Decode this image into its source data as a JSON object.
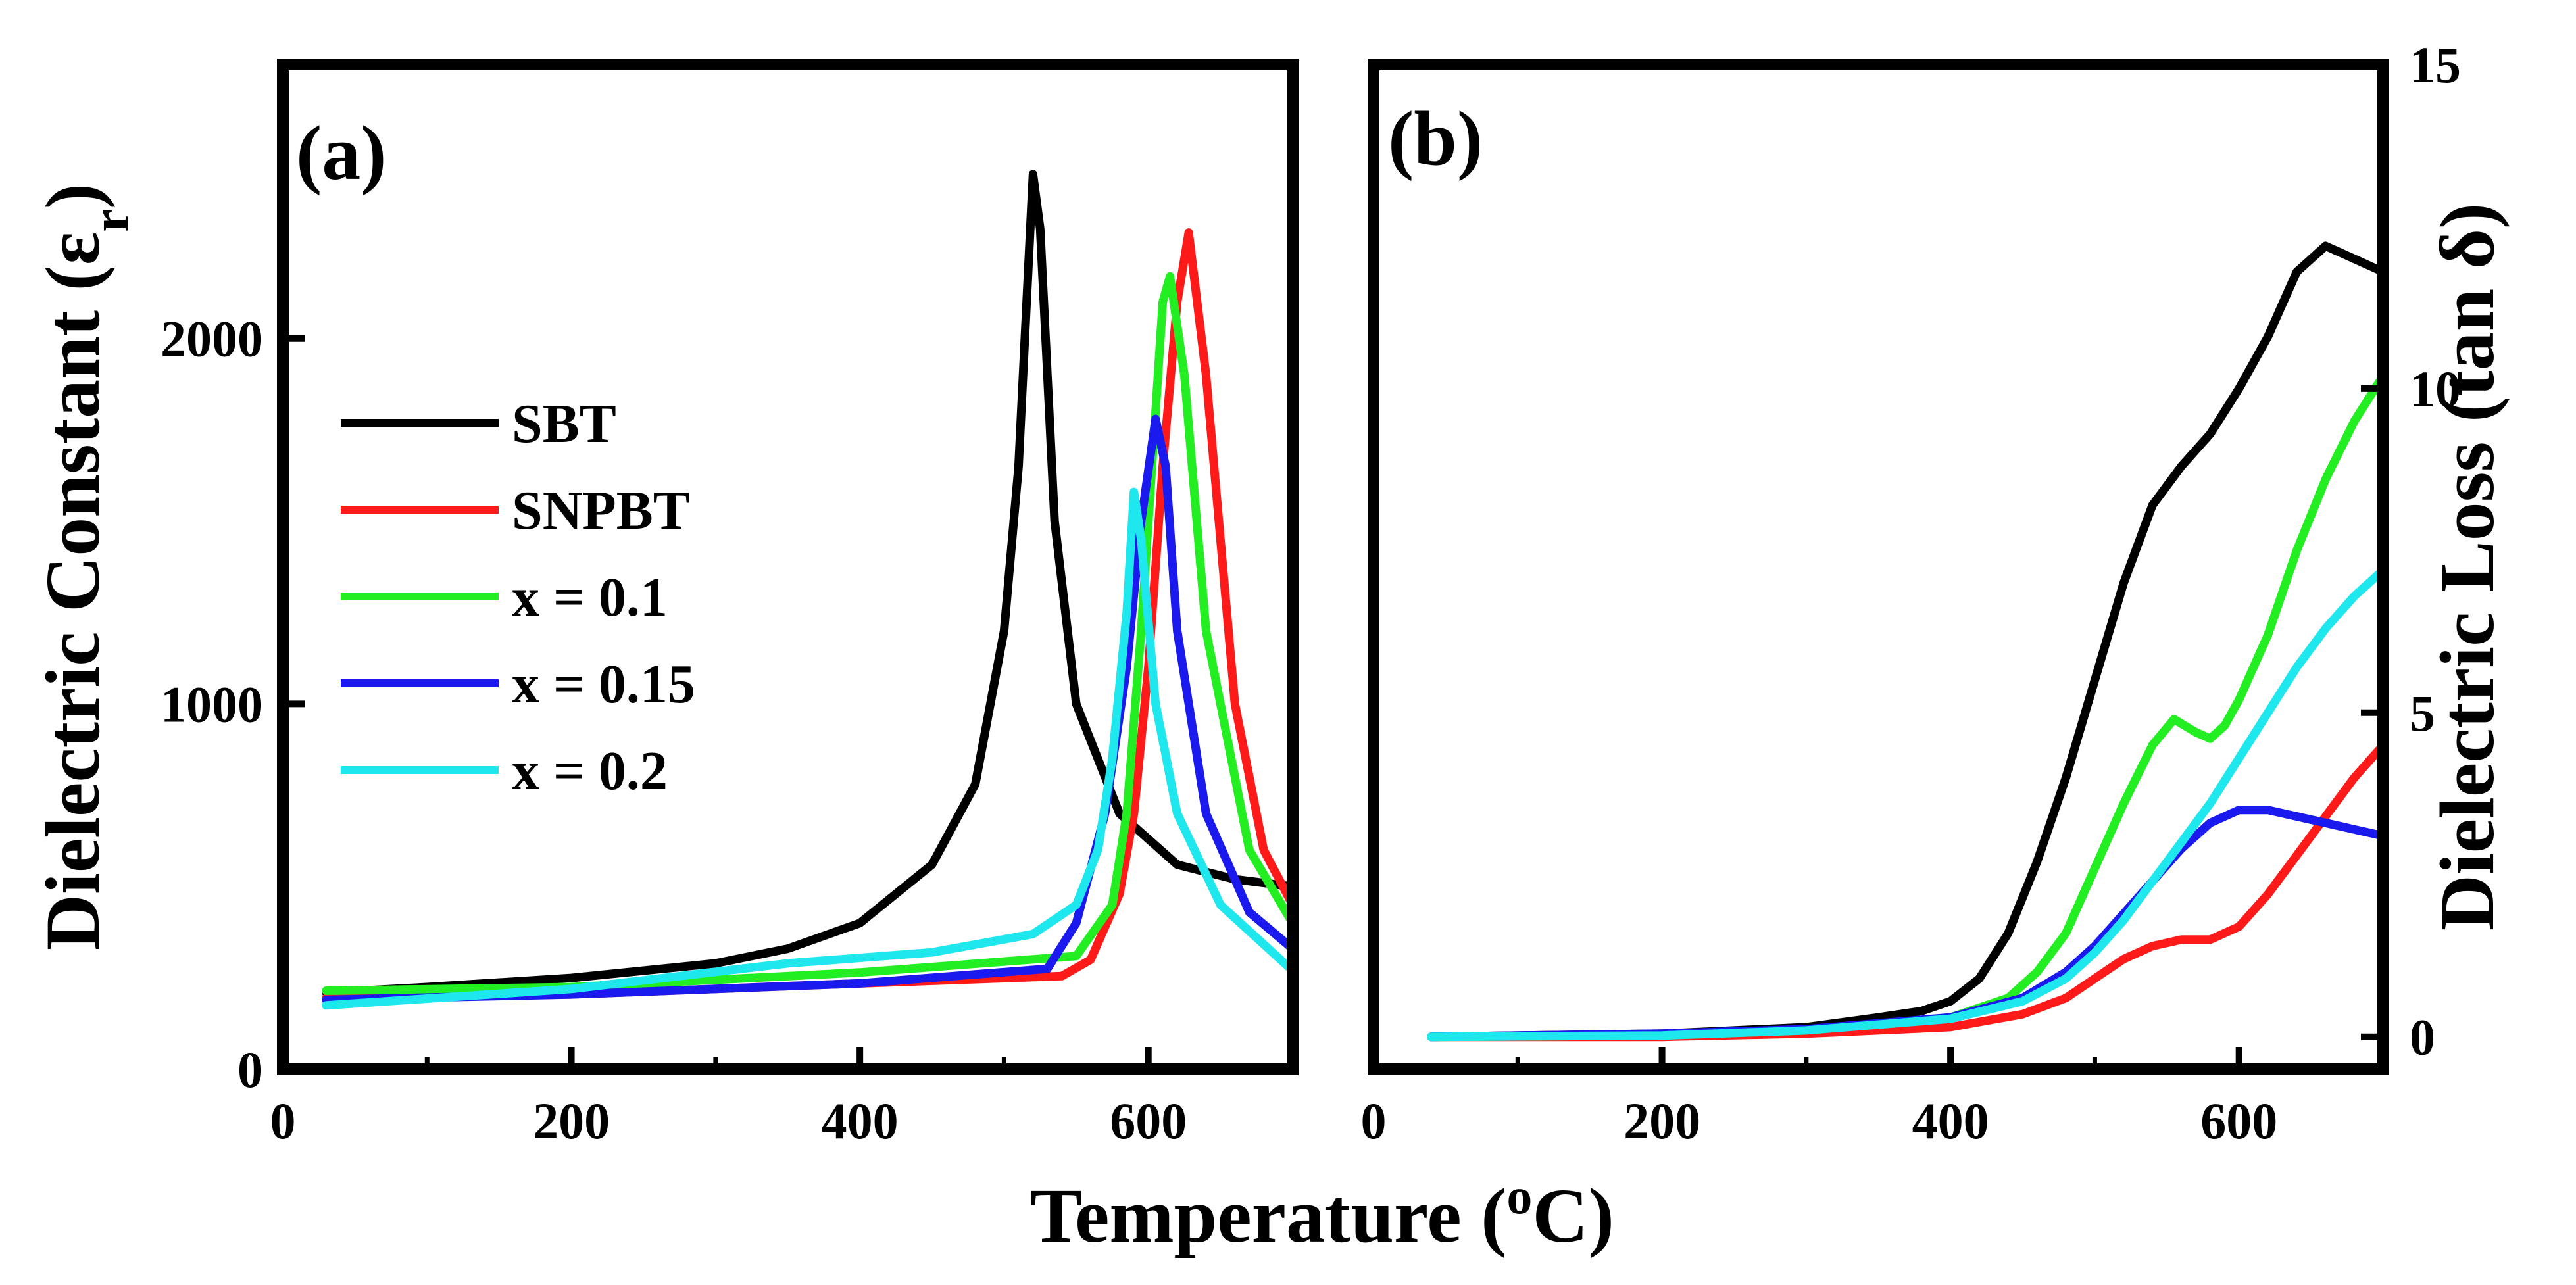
{
  "colors": {
    "SBT": "#000000",
    "SNPBT": "#ff1a1a",
    "x = 0.1": "#22ee22",
    "x = 0.15": "#1a1aee",
    "x = 0.2": "#1ee8ee"
  },
  "chart_data": [
    {
      "type": "line",
      "panel_label": "(a)",
      "xlabel_prefix": "Temperature (",
      "xlabel_sup": "o",
      "xlabel_suffix": "C)",
      "ylabel_prefix": "Dielectric Constant (ε",
      "ylabel_sub": "r",
      "ylabel_suffix": ")",
      "xlim": [
        0,
        700
      ],
      "ylim": [
        0,
        2750
      ],
      "xticks": [
        0,
        200,
        400,
        600
      ],
      "yticks": [
        0,
        1000,
        2000
      ],
      "legend_position": "left-middle",
      "series": [
        {
          "name": "SBT",
          "x": [
            30,
            100,
            200,
            300,
            350,
            400,
            450,
            480,
            500,
            510,
            515,
            520,
            525,
            535,
            550,
            580,
            620,
            660,
            700
          ],
          "y": [
            210,
            225,
            250,
            290,
            330,
            400,
            560,
            780,
            1200,
            1650,
            2050,
            2450,
            2300,
            1500,
            1000,
            700,
            560,
            520,
            500
          ]
        },
        {
          "name": "SNPBT",
          "x": [
            30,
            200,
            400,
            540,
            560,
            580,
            590,
            600,
            610,
            620,
            628,
            640,
            660,
            680,
            700
          ],
          "y": [
            195,
            205,
            235,
            255,
            300,
            480,
            700,
            1100,
            1650,
            2100,
            2290,
            1900,
            1000,
            600,
            450
          ]
        },
        {
          "name": "x = 0.1",
          "x": [
            30,
            200,
            400,
            550,
            575,
            585,
            595,
            605,
            610,
            615,
            625,
            640,
            670,
            700
          ],
          "y": [
            215,
            225,
            265,
            310,
            450,
            700,
            1200,
            1800,
            2100,
            2170,
            1900,
            1200,
            600,
            400
          ]
        },
        {
          "name": "x = 0.15",
          "x": [
            30,
            200,
            400,
            530,
            550,
            570,
            585,
            595,
            605,
            612,
            620,
            640,
            670,
            700
          ],
          "y": [
            190,
            205,
            235,
            275,
            400,
            700,
            1100,
            1500,
            1780,
            1650,
            1200,
            700,
            430,
            330
          ]
        },
        {
          "name": "x = 0.2",
          "x": [
            30,
            200,
            350,
            450,
            520,
            550,
            565,
            575,
            585,
            590,
            595,
            605,
            620,
            650,
            700
          ],
          "y": [
            175,
            220,
            290,
            320,
            370,
            450,
            600,
            850,
            1250,
            1580,
            1450,
            1000,
            700,
            450,
            270
          ]
        }
      ]
    },
    {
      "type": "line",
      "panel_label": "(b)",
      "xlabel_prefix": "Temperature (",
      "xlabel_sup": "o",
      "xlabel_suffix": "C)",
      "ylabel": "Dielectric Loss (tan δ)",
      "xlim": [
        0,
        700
      ],
      "ylim": [
        -0.5,
        15
      ],
      "xticks": [
        0,
        200,
        400,
        600
      ],
      "yticks": [
        0,
        5,
        10,
        15
      ],
      "y_axis_side": "right",
      "series": [
        {
          "name": "SBT",
          "x": [
            40,
            200,
            300,
            350,
            380,
            400,
            420,
            440,
            460,
            480,
            500,
            520,
            540,
            560,
            580,
            600,
            620,
            640,
            660,
            680,
            700
          ],
          "y": [
            0,
            0.05,
            0.15,
            0.3,
            0.4,
            0.55,
            0.9,
            1.6,
            2.7,
            4.0,
            5.5,
            7.0,
            8.2,
            8.8,
            9.3,
            10.0,
            10.8,
            11.8,
            12.2,
            12.0,
            11.8
          ]
        },
        {
          "name": "SNPBT",
          "x": [
            40,
            200,
            300,
            400,
            450,
            480,
            500,
            520,
            540,
            560,
            580,
            600,
            620,
            640,
            660,
            680,
            700
          ],
          "y": [
            0,
            0,
            0.05,
            0.15,
            0.35,
            0.6,
            0.9,
            1.2,
            1.4,
            1.5,
            1.5,
            1.7,
            2.2,
            2.8,
            3.4,
            4.0,
            4.5
          ]
        },
        {
          "name": "x = 0.1",
          "x": [
            40,
            200,
            300,
            400,
            440,
            460,
            480,
            500,
            520,
            540,
            555,
            570,
            580,
            590,
            600,
            620,
            640,
            660,
            680,
            700
          ],
          "y": [
            0,
            0.02,
            0.1,
            0.3,
            0.6,
            1.0,
            1.6,
            2.6,
            3.6,
            4.5,
            4.9,
            4.7,
            4.6,
            4.8,
            5.2,
            6.2,
            7.5,
            8.6,
            9.5,
            10.2
          ]
        },
        {
          "name": "x = 0.15",
          "x": [
            40,
            200,
            300,
            400,
            450,
            480,
            500,
            520,
            540,
            560,
            580,
            600,
            620,
            640,
            660,
            680,
            700
          ],
          "y": [
            0,
            0.05,
            0.12,
            0.3,
            0.6,
            1.0,
            1.4,
            1.9,
            2.4,
            2.9,
            3.3,
            3.5,
            3.5,
            3.4,
            3.3,
            3.2,
            3.1
          ]
        },
        {
          "name": "x = 0.2",
          "x": [
            40,
            200,
            300,
            400,
            450,
            480,
            500,
            520,
            540,
            560,
            580,
            600,
            620,
            640,
            660,
            680,
            700
          ],
          "y": [
            0,
            0.02,
            0.1,
            0.28,
            0.55,
            0.9,
            1.3,
            1.8,
            2.4,
            3.0,
            3.6,
            4.3,
            5.0,
            5.7,
            6.3,
            6.8,
            7.2
          ]
        }
      ]
    }
  ]
}
